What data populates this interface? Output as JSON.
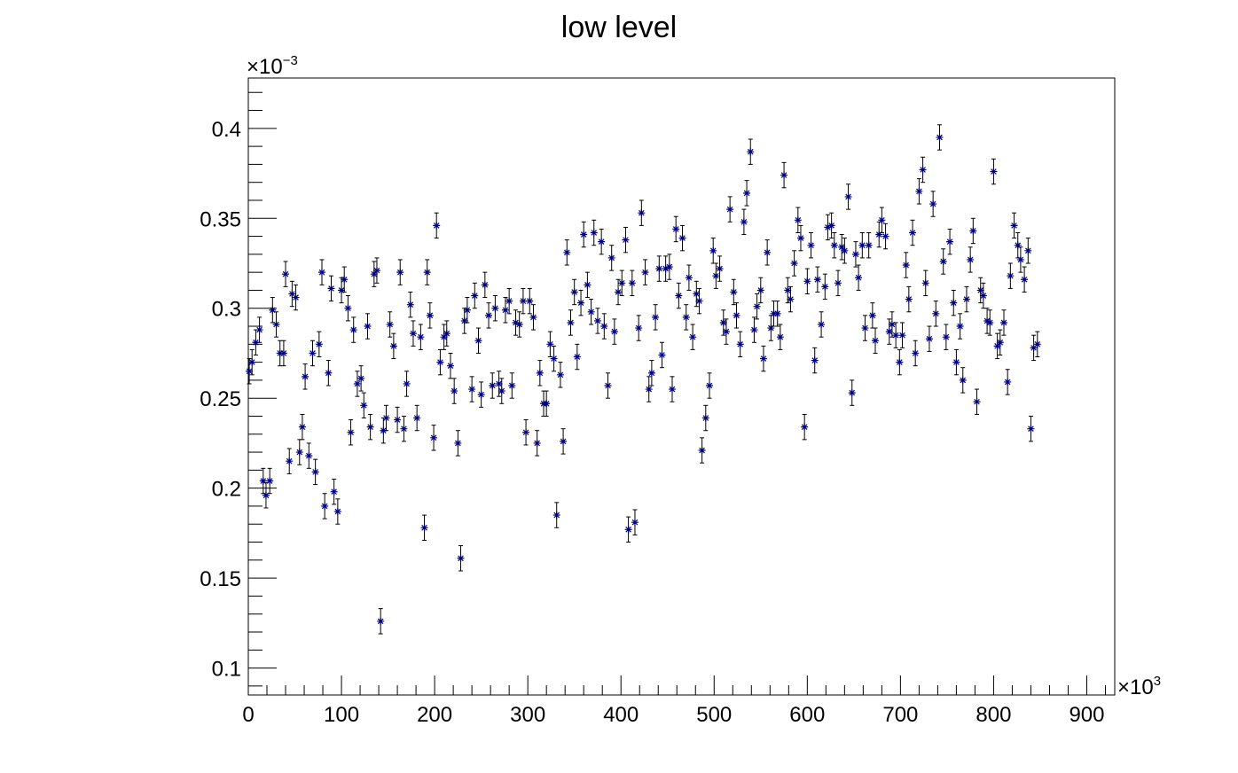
{
  "chart_data": {
    "type": "scatter",
    "title": "low level",
    "xlabel": "",
    "ylabel": "",
    "x_multiplier_base": "×10",
    "x_multiplier_exp": "3",
    "y_multiplier_base": "×10",
    "y_multiplier_exp": "−3",
    "xlim": [
      0,
      930
    ],
    "ylim": [
      0.085,
      0.428
    ],
    "x_ticks": [
      {
        "value": 0,
        "label": "0"
      },
      {
        "value": 100,
        "label": "100"
      },
      {
        "value": 200,
        "label": "200"
      },
      {
        "value": 300,
        "label": "300"
      },
      {
        "value": 400,
        "label": "400"
      },
      {
        "value": 500,
        "label": "500"
      },
      {
        "value": 600,
        "label": "600"
      },
      {
        "value": 700,
        "label": "700"
      },
      {
        "value": 800,
        "label": "800"
      },
      {
        "value": 900,
        "label": "900"
      }
    ],
    "y_ticks": [
      {
        "value": 0.1,
        "label": "0.1"
      },
      {
        "value": 0.15,
        "label": "0.15"
      },
      {
        "value": 0.2,
        "label": "0.2"
      },
      {
        "value": 0.25,
        "label": "0.25"
      },
      {
        "value": 0.3,
        "label": "0.3"
      },
      {
        "value": 0.35,
        "label": "0.35"
      },
      {
        "value": 0.4,
        "label": "0.4"
      }
    ],
    "grid": false,
    "marker_color": "#00007f",
    "errorbar_color": "#000000",
    "error": 0.007,
    "points": [
      [
        1,
        0.265
      ],
      [
        4,
        0.27
      ],
      [
        8,
        0.281
      ],
      [
        12,
        0.288
      ],
      [
        16,
        0.204
      ],
      [
        19,
        0.196
      ],
      [
        23,
        0.204
      ],
      [
        26,
        0.299
      ],
      [
        30,
        0.291
      ],
      [
        34,
        0.275
      ],
      [
        38,
        0.275
      ],
      [
        40,
        0.319
      ],
      [
        44,
        0.215
      ],
      [
        47,
        0.308
      ],
      [
        51,
        0.306
      ],
      [
        55,
        0.22
      ],
      [
        58,
        0.234
      ],
      [
        61,
        0.262
      ],
      [
        65,
        0.218
      ],
      [
        69,
        0.275
      ],
      [
        72,
        0.209
      ],
      [
        76,
        0.28
      ],
      [
        79,
        0.32
      ],
      [
        82,
        0.19
      ],
      [
        86,
        0.264
      ],
      [
        89,
        0.311
      ],
      [
        92,
        0.198
      ],
      [
        96,
        0.187
      ],
      [
        100,
        0.31
      ],
      [
        103,
        0.316
      ],
      [
        107,
        0.3
      ],
      [
        110,
        0.231
      ],
      [
        113,
        0.288
      ],
      [
        117,
        0.258
      ],
      [
        121,
        0.261
      ],
      [
        124,
        0.246
      ],
      [
        128,
        0.29
      ],
      [
        131,
        0.234
      ],
      [
        135,
        0.319
      ],
      [
        138,
        0.321
      ],
      [
        142,
        0.126
      ],
      [
        145,
        0.232
      ],
      [
        148,
        0.239
      ],
      [
        152,
        0.291
      ],
      [
        156,
        0.279
      ],
      [
        160,
        0.238
      ],
      [
        163,
        0.32
      ],
      [
        167,
        0.233
      ],
      [
        170,
        0.258
      ],
      [
        174,
        0.302
      ],
      [
        177,
        0.286
      ],
      [
        181,
        0.239
      ],
      [
        185,
        0.284
      ],
      [
        189,
        0.178
      ],
      [
        192,
        0.32
      ],
      [
        195,
        0.296
      ],
      [
        199,
        0.228
      ],
      [
        202,
        0.346
      ],
      [
        206,
        0.27
      ],
      [
        210,
        0.284
      ],
      [
        213,
        0.286
      ],
      [
        217,
        0.268
      ],
      [
        221,
        0.254
      ],
      [
        225,
        0.225
      ],
      [
        228,
        0.161
      ],
      [
        232,
        0.293
      ],
      [
        235,
        0.299
      ],
      [
        240,
        0.255
      ],
      [
        243,
        0.307
      ],
      [
        247,
        0.282
      ],
      [
        250,
        0.252
      ],
      [
        254,
        0.313
      ],
      [
        258,
        0.296
      ],
      [
        262,
        0.257
      ],
      [
        265,
        0.3
      ],
      [
        269,
        0.258
      ],
      [
        272,
        0.254
      ],
      [
        276,
        0.299
      ],
      [
        280,
        0.304
      ],
      [
        283,
        0.257
      ],
      [
        287,
        0.292
      ],
      [
        291,
        0.291
      ],
      [
        295,
        0.304
      ],
      [
        298,
        0.231
      ],
      [
        302,
        0.304
      ],
      [
        306,
        0.295
      ],
      [
        310,
        0.225
      ],
      [
        313,
        0.264
      ],
      [
        317,
        0.247
      ],
      [
        320,
        0.247
      ],
      [
        324,
        0.28
      ],
      [
        328,
        0.272
      ],
      [
        331,
        0.185
      ],
      [
        335,
        0.263
      ],
      [
        338,
        0.226
      ],
      [
        342,
        0.331
      ],
      [
        346,
        0.292
      ],
      [
        350,
        0.309
      ],
      [
        353,
        0.273
      ],
      [
        357,
        0.303
      ],
      [
        360,
        0.341
      ],
      [
        364,
        0.313
      ],
      [
        368,
        0.298
      ],
      [
        371,
        0.342
      ],
      [
        375,
        0.293
      ],
      [
        379,
        0.337
      ],
      [
        382,
        0.29
      ],
      [
        386,
        0.257
      ],
      [
        390,
        0.328
      ],
      [
        393,
        0.287
      ],
      [
        397,
        0.309
      ],
      [
        401,
        0.314
      ],
      [
        405,
        0.338
      ],
      [
        408,
        0.177
      ],
      [
        412,
        0.314
      ],
      [
        415,
        0.181
      ],
      [
        419,
        0.289
      ],
      [
        422,
        0.353
      ],
      [
        426,
        0.32
      ],
      [
        430,
        0.255
      ],
      [
        433,
        0.264
      ],
      [
        437,
        0.295
      ],
      [
        441,
        0.322
      ],
      [
        444,
        0.274
      ],
      [
        448,
        0.322
      ],
      [
        452,
        0.323
      ],
      [
        455,
        0.255
      ],
      [
        459,
        0.344
      ],
      [
        462,
        0.307
      ],
      [
        466,
        0.339
      ],
      [
        470,
        0.295
      ],
      [
        473,
        0.317
      ],
      [
        477,
        0.284
      ],
      [
        481,
        0.308
      ],
      [
        484,
        0.304
      ],
      [
        487,
        0.221
      ],
      [
        491,
        0.239
      ],
      [
        495,
        0.257
      ],
      [
        499,
        0.332
      ],
      [
        502,
        0.318
      ],
      [
        506,
        0.322
      ],
      [
        510,
        0.292
      ],
      [
        513,
        0.287
      ],
      [
        517,
        0.355
      ],
      [
        521,
        0.309
      ],
      [
        524,
        0.296
      ],
      [
        528,
        0.28
      ],
      [
        532,
        0.348
      ],
      [
        535,
        0.364
      ],
      [
        539,
        0.387
      ],
      [
        543,
        0.288
      ],
      [
        546,
        0.301
      ],
      [
        550,
        0.31
      ],
      [
        553,
        0.272
      ],
      [
        557,
        0.331
      ],
      [
        561,
        0.289
      ],
      [
        564,
        0.297
      ],
      [
        568,
        0.297
      ],
      [
        571,
        0.284
      ],
      [
        575,
        0.374
      ],
      [
        579,
        0.31
      ],
      [
        582,
        0.305
      ],
      [
        586,
        0.325
      ],
      [
        590,
        0.349
      ],
      [
        593,
        0.339
      ],
      [
        597,
        0.234
      ],
      [
        600,
        0.315
      ],
      [
        604,
        0.335
      ],
      [
        608,
        0.271
      ],
      [
        611,
        0.316
      ],
      [
        615,
        0.291
      ],
      [
        619,
        0.312
      ],
      [
        622,
        0.345
      ],
      [
        626,
        0.346
      ],
      [
        629,
        0.335
      ],
      [
        633,
        0.314
      ],
      [
        637,
        0.334
      ],
      [
        640,
        0.332
      ],
      [
        644,
        0.362
      ],
      [
        648,
        0.253
      ],
      [
        652,
        0.33
      ],
      [
        655,
        0.317
      ],
      [
        659,
        0.335
      ],
      [
        662,
        0.289
      ],
      [
        666,
        0.335
      ],
      [
        670,
        0.296
      ],
      [
        673,
        0.282
      ],
      [
        677,
        0.341
      ],
      [
        680,
        0.349
      ],
      [
        684,
        0.34
      ],
      [
        688,
        0.287
      ],
      [
        691,
        0.291
      ],
      [
        695,
        0.285
      ],
      [
        699,
        0.27
      ],
      [
        702,
        0.285
      ],
      [
        706,
        0.324
      ],
      [
        709,
        0.305
      ],
      [
        713,
        0.342
      ],
      [
        716,
        0.275
      ],
      [
        720,
        0.365
      ],
      [
        724,
        0.377
      ],
      [
        727,
        0.314
      ],
      [
        731,
        0.283
      ],
      [
        735,
        0.358
      ],
      [
        738,
        0.297
      ],
      [
        742,
        0.395
      ],
      [
        746,
        0.326
      ],
      [
        749,
        0.284
      ],
      [
        753,
        0.337
      ],
      [
        757,
        0.303
      ],
      [
        760,
        0.27
      ],
      [
        764,
        0.29
      ],
      [
        767,
        0.26
      ],
      [
        771,
        0.305
      ],
      [
        775,
        0.327
      ],
      [
        778,
        0.343
      ],
      [
        782,
        0.248
      ],
      [
        786,
        0.31
      ],
      [
        789,
        0.307
      ],
      [
        793,
        0.293
      ],
      [
        796,
        0.292
      ],
      [
        800,
        0.376
      ],
      [
        804,
        0.279
      ],
      [
        807,
        0.281
      ],
      [
        811,
        0.292
      ],
      [
        815,
        0.259
      ],
      [
        818,
        0.318
      ],
      [
        822,
        0.346
      ],
      [
        826,
        0.335
      ],
      [
        829,
        0.327
      ],
      [
        833,
        0.316
      ],
      [
        837,
        0.332
      ],
      [
        840,
        0.233
      ],
      [
        843,
        0.278
      ],
      [
        847,
        0.28
      ]
    ]
  }
}
